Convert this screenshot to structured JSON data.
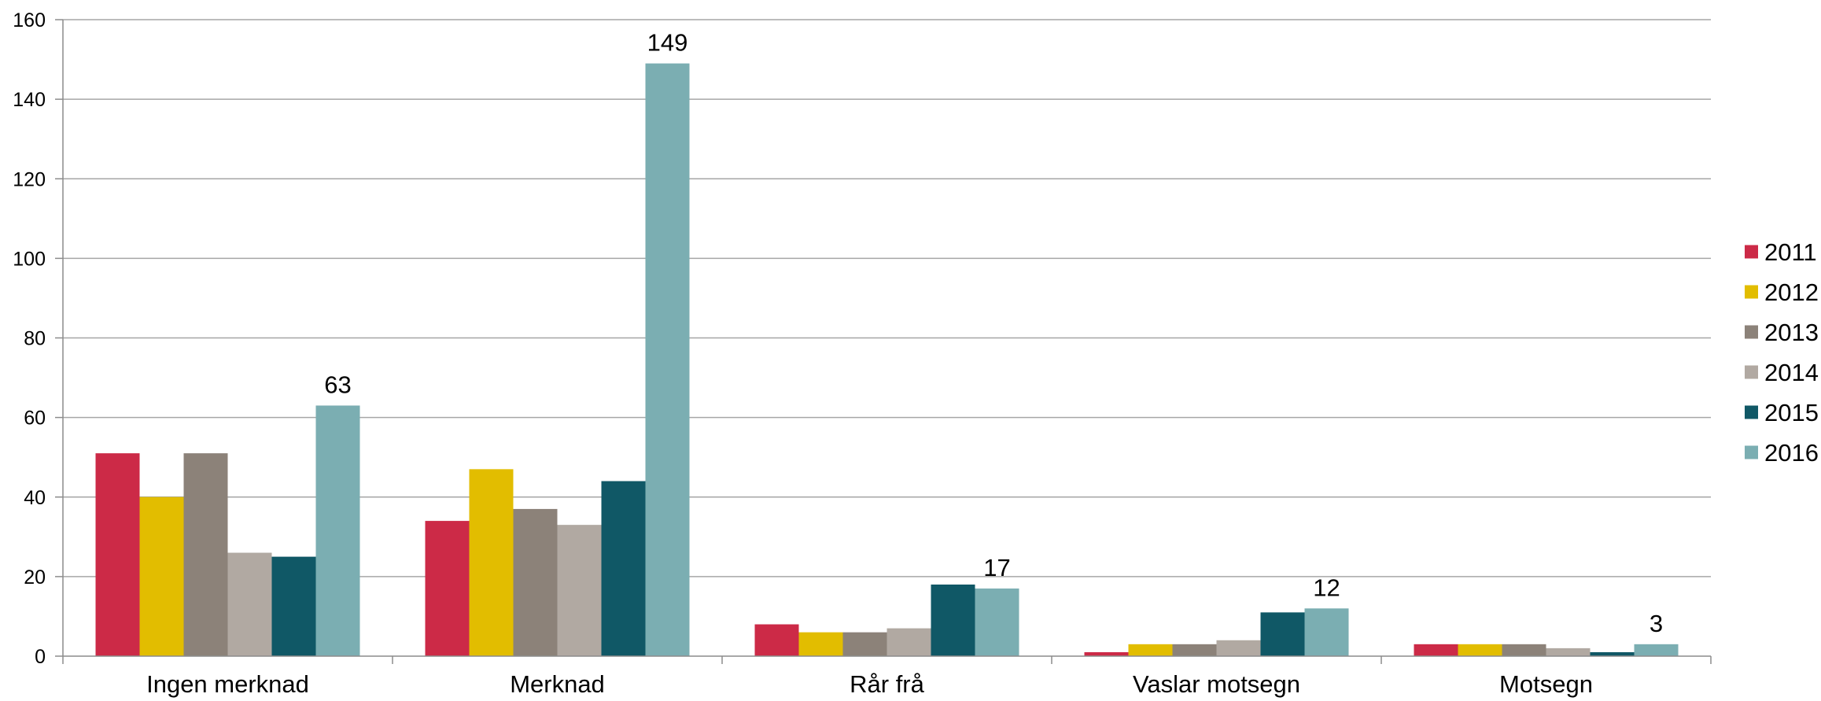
{
  "chart_data": {
    "type": "bar",
    "title": "",
    "xlabel": "",
    "ylabel": "",
    "ylim": [
      0,
      160
    ],
    "yticks": [
      0,
      20,
      40,
      60,
      80,
      100,
      120,
      140,
      160
    ],
    "grid": true,
    "legend_position": "right",
    "categories": [
      "Ingen merknad",
      "Merknad",
      "Rår frå",
      "Vaslar motsegn",
      "Motsegn"
    ],
    "series": [
      {
        "name": "2011",
        "color": "#cc2a47",
        "values": [
          51,
          34,
          8,
          1,
          3
        ]
      },
      {
        "name": "2012",
        "color": "#e2bd00",
        "values": [
          40,
          47,
          6,
          3,
          3
        ]
      },
      {
        "name": "2013",
        "color": "#8c8279",
        "values": [
          51,
          37,
          6,
          3,
          3
        ]
      },
      {
        "name": "2014",
        "color": "#b1a9a2",
        "values": [
          26,
          33,
          7,
          4,
          2
        ]
      },
      {
        "name": "2015",
        "color": "#105866",
        "values": [
          25,
          44,
          18,
          11,
          1
        ]
      },
      {
        "name": "2016",
        "color": "#7baeb2",
        "values": [
          63,
          149,
          17,
          12,
          3
        ]
      }
    ],
    "data_labels": {
      "series": "2016",
      "values": [
        "63",
        "149",
        "17",
        "12",
        "3"
      ]
    }
  }
}
